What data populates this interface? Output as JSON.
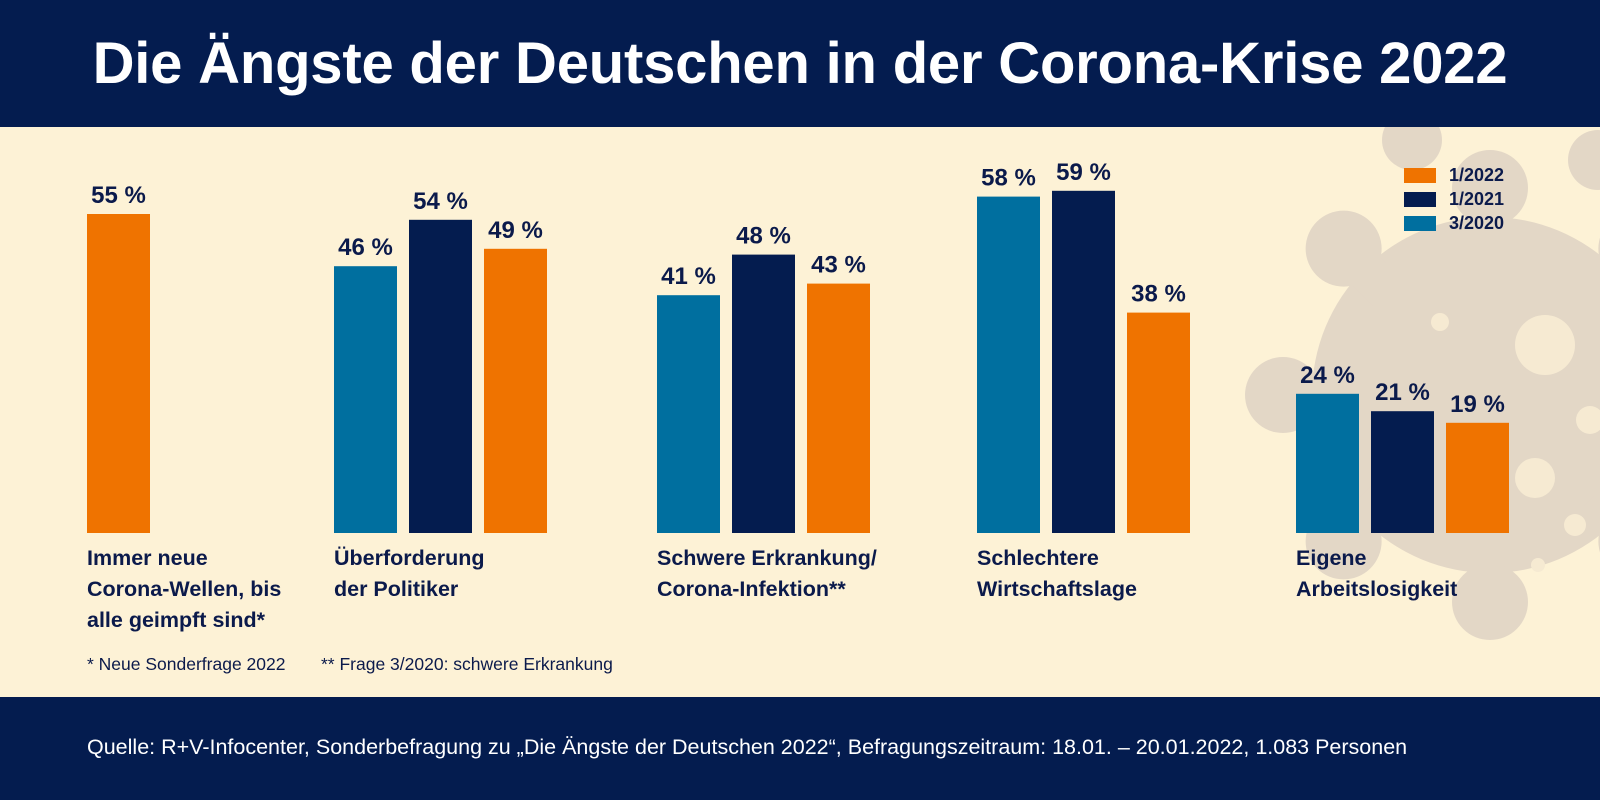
{
  "title": "Die Ängste der Deutschen in der Corona-Krise 2022",
  "legend": [
    {
      "label": "1/2022",
      "color": "#ef7300"
    },
    {
      "label": "1/2021",
      "color": "#041c4f"
    },
    {
      "label": "3/2020",
      "color": "#006f9f"
    }
  ],
  "chart_data": {
    "type": "bar",
    "unit": "%",
    "categories": [
      {
        "lines": [
          "Immer neue",
          "Corona-Wellen, bis",
          "alle geimpft sind*"
        ]
      },
      {
        "lines": [
          "Überforderung",
          "der Politiker"
        ]
      },
      {
        "lines": [
          "Schwere Erkrankung/",
          "Corona-Infektion**"
        ]
      },
      {
        "lines": [
          "Schlechtere",
          "Wirtschaftslage"
        ]
      },
      {
        "lines": [
          "Eigene",
          "Arbeitslosigkeit"
        ]
      }
    ],
    "series": [
      {
        "name": "3/2020",
        "color": "#006f9f",
        "values": [
          null,
          46,
          41,
          58,
          24
        ]
      },
      {
        "name": "1/2021",
        "color": "#041c4f",
        "values": [
          null,
          54,
          48,
          59,
          21
        ]
      },
      {
        "name": "1/2022",
        "color": "#ef7300",
        "values": [
          55,
          49,
          43,
          38,
          19
        ]
      }
    ],
    "data_labels": [
      [
        "55 %"
      ],
      [
        "46 %",
        "54 %",
        "49 %"
      ],
      [
        "41 %",
        "48 %",
        "43 %"
      ],
      [
        "58 %",
        "59 %",
        "38 %"
      ],
      [
        "24 %",
        "21 %",
        "19 %"
      ]
    ],
    "ylim": [
      0,
      60
    ]
  },
  "footnotes": [
    "* Neue Sonderfrage 2022",
    "** Frage 3/2020: schwere Erkrankung"
  ],
  "source": "Quelle: R+V-Infocenter, Sonderbefragung zu „Die Ängste der Deutschen 2022“, Befragungszeitraum: 18.01. – 20.01.2022, 1.083 Personen"
}
